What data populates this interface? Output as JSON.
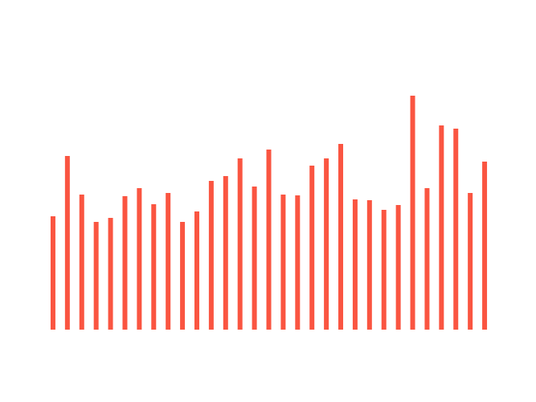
{
  "chart_data": {
    "type": "bar",
    "categories": [
      null,
      null,
      null,
      null,
      null,
      null,
      null,
      null,
      null,
      null,
      null,
      null,
      null,
      null,
      null,
      null,
      null,
      null,
      null,
      null,
      null,
      null,
      null,
      null,
      null,
      null,
      null,
      null,
      null,
      null,
      null
    ],
    "values": [
      141,
      216,
      168,
      134,
      139,
      166,
      176,
      156,
      170,
      134,
      147,
      185,
      191,
      213,
      178,
      224,
      168,
      167,
      204,
      213,
      231,
      162,
      161,
      149,
      155,
      291,
      176,
      254,
      250,
      170,
      209
    ],
    "color": "#fa5541",
    "ylim": [
      0,
      350
    ]
  }
}
